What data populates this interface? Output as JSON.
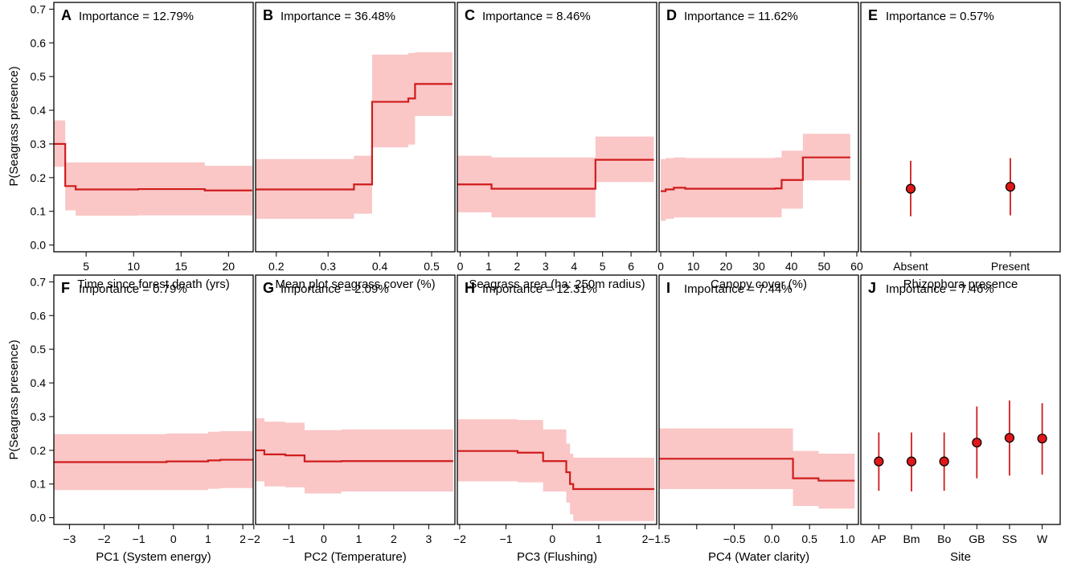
{
  "figure": {
    "ylabel": "P(Seagrass presence)"
  },
  "colors": {
    "line": "#d01c1c",
    "band": "#f7a8a8",
    "point": "#e01818"
  },
  "chart_data": [
    {
      "letter": "A",
      "type": "line",
      "importance": "Importance = 12.79%",
      "xlabel": "Time since forest death (yrs)",
      "xlim": [
        1.6,
        22.6
      ],
      "ylim": [
        -0.02,
        0.72
      ],
      "xticks": [
        5,
        10,
        15,
        20
      ],
      "xtick_labels": [
        "5",
        "10",
        "15",
        "20"
      ],
      "yticks": [
        0,
        0.1,
        0.2,
        0.3,
        0.4,
        0.5,
        0.6,
        0.7
      ],
      "ytick_labels": [
        "0.0",
        "0.1",
        "0.2",
        "0.3",
        "0.4",
        "0.5",
        "0.6",
        "0.7"
      ],
      "steps": [
        [
          1.6,
          0.3,
          0.37,
          0.232
        ],
        [
          2.8,
          0.175,
          0.245,
          0.103
        ],
        [
          3.9,
          0.165,
          0.245,
          0.087
        ],
        [
          10.5,
          0.166,
          0.245,
          0.088
        ],
        [
          17.5,
          0.162,
          0.235,
          0.088
        ],
        [
          22.5,
          0.162,
          0.235,
          0.088
        ]
      ]
    },
    {
      "letter": "B",
      "type": "line",
      "importance": "Importance = 36.48%",
      "xlabel": "Mean plot seagrass cover (%)",
      "xlim": [
        0.16,
        0.545
      ],
      "ylim": [
        -0.02,
        0.72
      ],
      "xticks": [
        0.2,
        0.3,
        0.4,
        0.5
      ],
      "xtick_labels": [
        "0.2",
        "0.3",
        "0.4",
        "0.5"
      ],
      "yticks": [
        0,
        0.1,
        0.2,
        0.3,
        0.4,
        0.5,
        0.6,
        0.7
      ],
      "ytick_labels": [
        "0.0",
        "0.1",
        "0.2",
        "0.3",
        "0.4",
        "0.5",
        "0.6",
        "0.7"
      ],
      "steps": [
        [
          0.16,
          0.165,
          0.255,
          0.078
        ],
        [
          0.35,
          0.18,
          0.265,
          0.093
        ],
        [
          0.385,
          0.425,
          0.565,
          0.29
        ],
        [
          0.455,
          0.435,
          0.57,
          0.298
        ],
        [
          0.468,
          0.478,
          0.572,
          0.383
        ],
        [
          0.54,
          0.478,
          0.572,
          0.383
        ]
      ]
    },
    {
      "letter": "C",
      "type": "line",
      "importance": "Importance = 8.46%",
      "xlabel": "Seagrass area (ha: 250m radius)",
      "xlim": [
        -0.1,
        6.9
      ],
      "ylim": [
        -0.02,
        0.72
      ],
      "xticks": [
        0,
        1,
        2,
        3,
        4,
        5,
        6
      ],
      "xtick_labels": [
        "0",
        "1",
        "2",
        "3",
        "4",
        "5",
        "6"
      ],
      "yticks": [
        0,
        0.1,
        0.2,
        0.3,
        0.4,
        0.5,
        0.6,
        0.7
      ],
      "ytick_labels": [
        "0.0",
        "0.1",
        "0.2",
        "0.3",
        "0.4",
        "0.5",
        "0.6",
        "0.7"
      ],
      "steps": [
        [
          -0.1,
          0.18,
          0.265,
          0.097
        ],
        [
          1.1,
          0.167,
          0.26,
          0.082
        ],
        [
          4.75,
          0.253,
          0.322,
          0.187
        ],
        [
          6.8,
          0.253,
          0.322,
          0.187
        ]
      ]
    },
    {
      "letter": "D",
      "type": "line",
      "importance": "Importance = 11.62%",
      "xlabel": "Canopy cover (%)",
      "xlim": [
        -0.5,
        60.5
      ],
      "ylim": [
        -0.02,
        0.72
      ],
      "xticks": [
        0,
        10,
        20,
        30,
        40,
        50,
        60
      ],
      "xtick_labels": [
        "0",
        "10",
        "20",
        "30",
        "40",
        "50",
        "60"
      ],
      "yticks": [
        0,
        0.1,
        0.2,
        0.3,
        0.4,
        0.5,
        0.6,
        0.7
      ],
      "ytick_labels": [
        "0.0",
        "0.1",
        "0.2",
        "0.3",
        "0.4",
        "0.5",
        "0.6",
        "0.7"
      ],
      "steps": [
        [
          0,
          0.16,
          0.255,
          0.072
        ],
        [
          1.5,
          0.165,
          0.258,
          0.078
        ],
        [
          4,
          0.17,
          0.26,
          0.082
        ],
        [
          7.5,
          0.167,
          0.258,
          0.082
        ],
        [
          35,
          0.168,
          0.26,
          0.082
        ],
        [
          37,
          0.193,
          0.28,
          0.108
        ],
        [
          43.5,
          0.26,
          0.33,
          0.192
        ],
        [
          58,
          0.26,
          0.33,
          0.192
        ]
      ]
    },
    {
      "letter": "E",
      "type": "point",
      "importance": "Importance = 0.57%",
      "xlabel": "Rhizophora presence",
      "xlim": [
        0.5,
        2.5
      ],
      "ylim": [
        -0.02,
        0.72
      ],
      "yticks": [
        0,
        0.1,
        0.2,
        0.3,
        0.4,
        0.5,
        0.6,
        0.7
      ],
      "ytick_labels": [
        "0.0",
        "0.1",
        "0.2",
        "0.3",
        "0.4",
        "0.5",
        "0.6",
        "0.7"
      ],
      "categories": [
        "Absent",
        "Present"
      ],
      "points": [
        [
          0.167,
          0.25,
          0.085
        ],
        [
          0.173,
          0.258,
          0.088
        ]
      ]
    },
    {
      "letter": "F",
      "type": "line",
      "importance": "Importance = 0.79%",
      "xlabel": "PC1 (System energy)",
      "xlim": [
        -3.45,
        2.3
      ],
      "ylim": [
        -0.02,
        0.72
      ],
      "xticks": [
        -3,
        -2,
        -1,
        0,
        1,
        2
      ],
      "xtick_labels": [
        "−3",
        "−2",
        "−1",
        "0",
        "1",
        "2"
      ],
      "yticks": [
        0,
        0.1,
        0.2,
        0.3,
        0.4,
        0.5,
        0.6,
        0.7
      ],
      "ytick_labels": [
        "0.0",
        "0.1",
        "0.2",
        "0.3",
        "0.4",
        "0.5",
        "0.6",
        "0.7"
      ],
      "steps": [
        [
          -3.45,
          0.165,
          0.248,
          0.082
        ],
        [
          -0.2,
          0.167,
          0.25,
          0.082
        ],
        [
          1.0,
          0.17,
          0.255,
          0.086
        ],
        [
          1.35,
          0.172,
          0.257,
          0.088
        ],
        [
          2.3,
          0.172,
          0.257,
          0.088
        ]
      ]
    },
    {
      "letter": "G",
      "type": "line",
      "importance": "Importance = 2.09%",
      "xlabel": "PC2 (Temperature)",
      "xlim": [
        -1.95,
        3.75
      ],
      "ylim": [
        -0.02,
        0.72
      ],
      "xticks": [
        -2,
        -1,
        0,
        1,
        2,
        3
      ],
      "xtick_labels": [
        "−2",
        "−1",
        "0",
        "1",
        "2",
        "3"
      ],
      "yticks": [
        0,
        0.1,
        0.2,
        0.3,
        0.4,
        0.5,
        0.6,
        0.7
      ],
      "ytick_labels": [
        "0.0",
        "0.1",
        "0.2",
        "0.3",
        "0.4",
        "0.5",
        "0.6",
        "0.7"
      ],
      "steps": [
        [
          -1.95,
          0.2,
          0.295,
          0.108
        ],
        [
          -1.7,
          0.188,
          0.285,
          0.093
        ],
        [
          -1.1,
          0.185,
          0.282,
          0.09
        ],
        [
          -0.55,
          0.167,
          0.26,
          0.072
        ],
        [
          0.5,
          0.168,
          0.262,
          0.078
        ],
        [
          3.7,
          0.168,
          0.262,
          0.078
        ]
      ]
    },
    {
      "letter": "H",
      "type": "line",
      "importance": "Importance = 12.31%",
      "xlabel": "PC3 (Flushing)",
      "xlim": [
        -2.05,
        2.25
      ],
      "ylim": [
        -0.02,
        0.72
      ],
      "xticks": [
        -2,
        -1,
        0,
        1,
        2
      ],
      "xtick_labels": [
        "−2",
        "−1",
        "0",
        "1",
        "2"
      ],
      "yticks": [
        0,
        0.1,
        0.2,
        0.3,
        0.4,
        0.5,
        0.6,
        0.7
      ],
      "ytick_labels": [
        "0.0",
        "0.1",
        "0.2",
        "0.3",
        "0.4",
        "0.5",
        "0.6",
        "0.7"
      ],
      "steps": [
        [
          -2.05,
          0.198,
          0.292,
          0.108
        ],
        [
          -0.75,
          0.193,
          0.29,
          0.105
        ],
        [
          -0.2,
          0.168,
          0.262,
          0.078
        ],
        [
          0.3,
          0.135,
          0.22,
          0.045
        ],
        [
          0.38,
          0.1,
          0.19,
          0.01
        ],
        [
          0.45,
          0.085,
          0.178,
          -0.01
        ],
        [
          2.2,
          0.085,
          0.178,
          -0.01
        ]
      ]
    },
    {
      "letter": "I",
      "type": "line",
      "importance": "Importance = 7.44%",
      "xlabel": "PC4 (Water clarity)",
      "xlim": [
        -1.5,
        1.15
      ],
      "ylim": [
        -0.02,
        0.72
      ],
      "xticks": [
        -1.5,
        -0.5,
        0,
        0.5,
        1
      ],
      "xtick_labels": [
        "−1.5",
        "−0.5",
        "0.0",
        "0.5",
        "1.0"
      ],
      "minor_ticks": [
        -1.0
      ],
      "yticks": [
        0,
        0.1,
        0.2,
        0.3,
        0.4,
        0.5,
        0.6,
        0.7
      ],
      "ytick_labels": [
        "0.0",
        "0.1",
        "0.2",
        "0.3",
        "0.4",
        "0.5",
        "0.6",
        "0.7"
      ],
      "steps": [
        [
          -1.5,
          0.175,
          0.265,
          0.085
        ],
        [
          0.28,
          0.117,
          0.198,
          0.035
        ],
        [
          0.62,
          0.11,
          0.19,
          0.027
        ],
        [
          1.1,
          0.11,
          0.19,
          0.027
        ]
      ]
    },
    {
      "letter": "J",
      "type": "point",
      "importance": "Importance = 7.46%",
      "xlabel": "Site",
      "xlim": [
        0.45,
        6.55
      ],
      "ylim": [
        -0.02,
        0.72
      ],
      "yticks": [
        0,
        0.1,
        0.2,
        0.3,
        0.4,
        0.5,
        0.6,
        0.7
      ],
      "ytick_labels": [
        "0.0",
        "0.1",
        "0.2",
        "0.3",
        "0.4",
        "0.5",
        "0.6",
        "0.7"
      ],
      "categories": [
        "AP",
        "Bm",
        "Bo",
        "GB",
        "SS",
        "W"
      ],
      "points": [
        [
          0.167,
          0.253,
          0.08
        ],
        [
          0.167,
          0.253,
          0.078
        ],
        [
          0.167,
          0.253,
          0.08
        ],
        [
          0.223,
          0.33,
          0.117
        ],
        [
          0.237,
          0.348,
          0.125
        ],
        [
          0.235,
          0.34,
          0.128
        ]
      ]
    }
  ]
}
